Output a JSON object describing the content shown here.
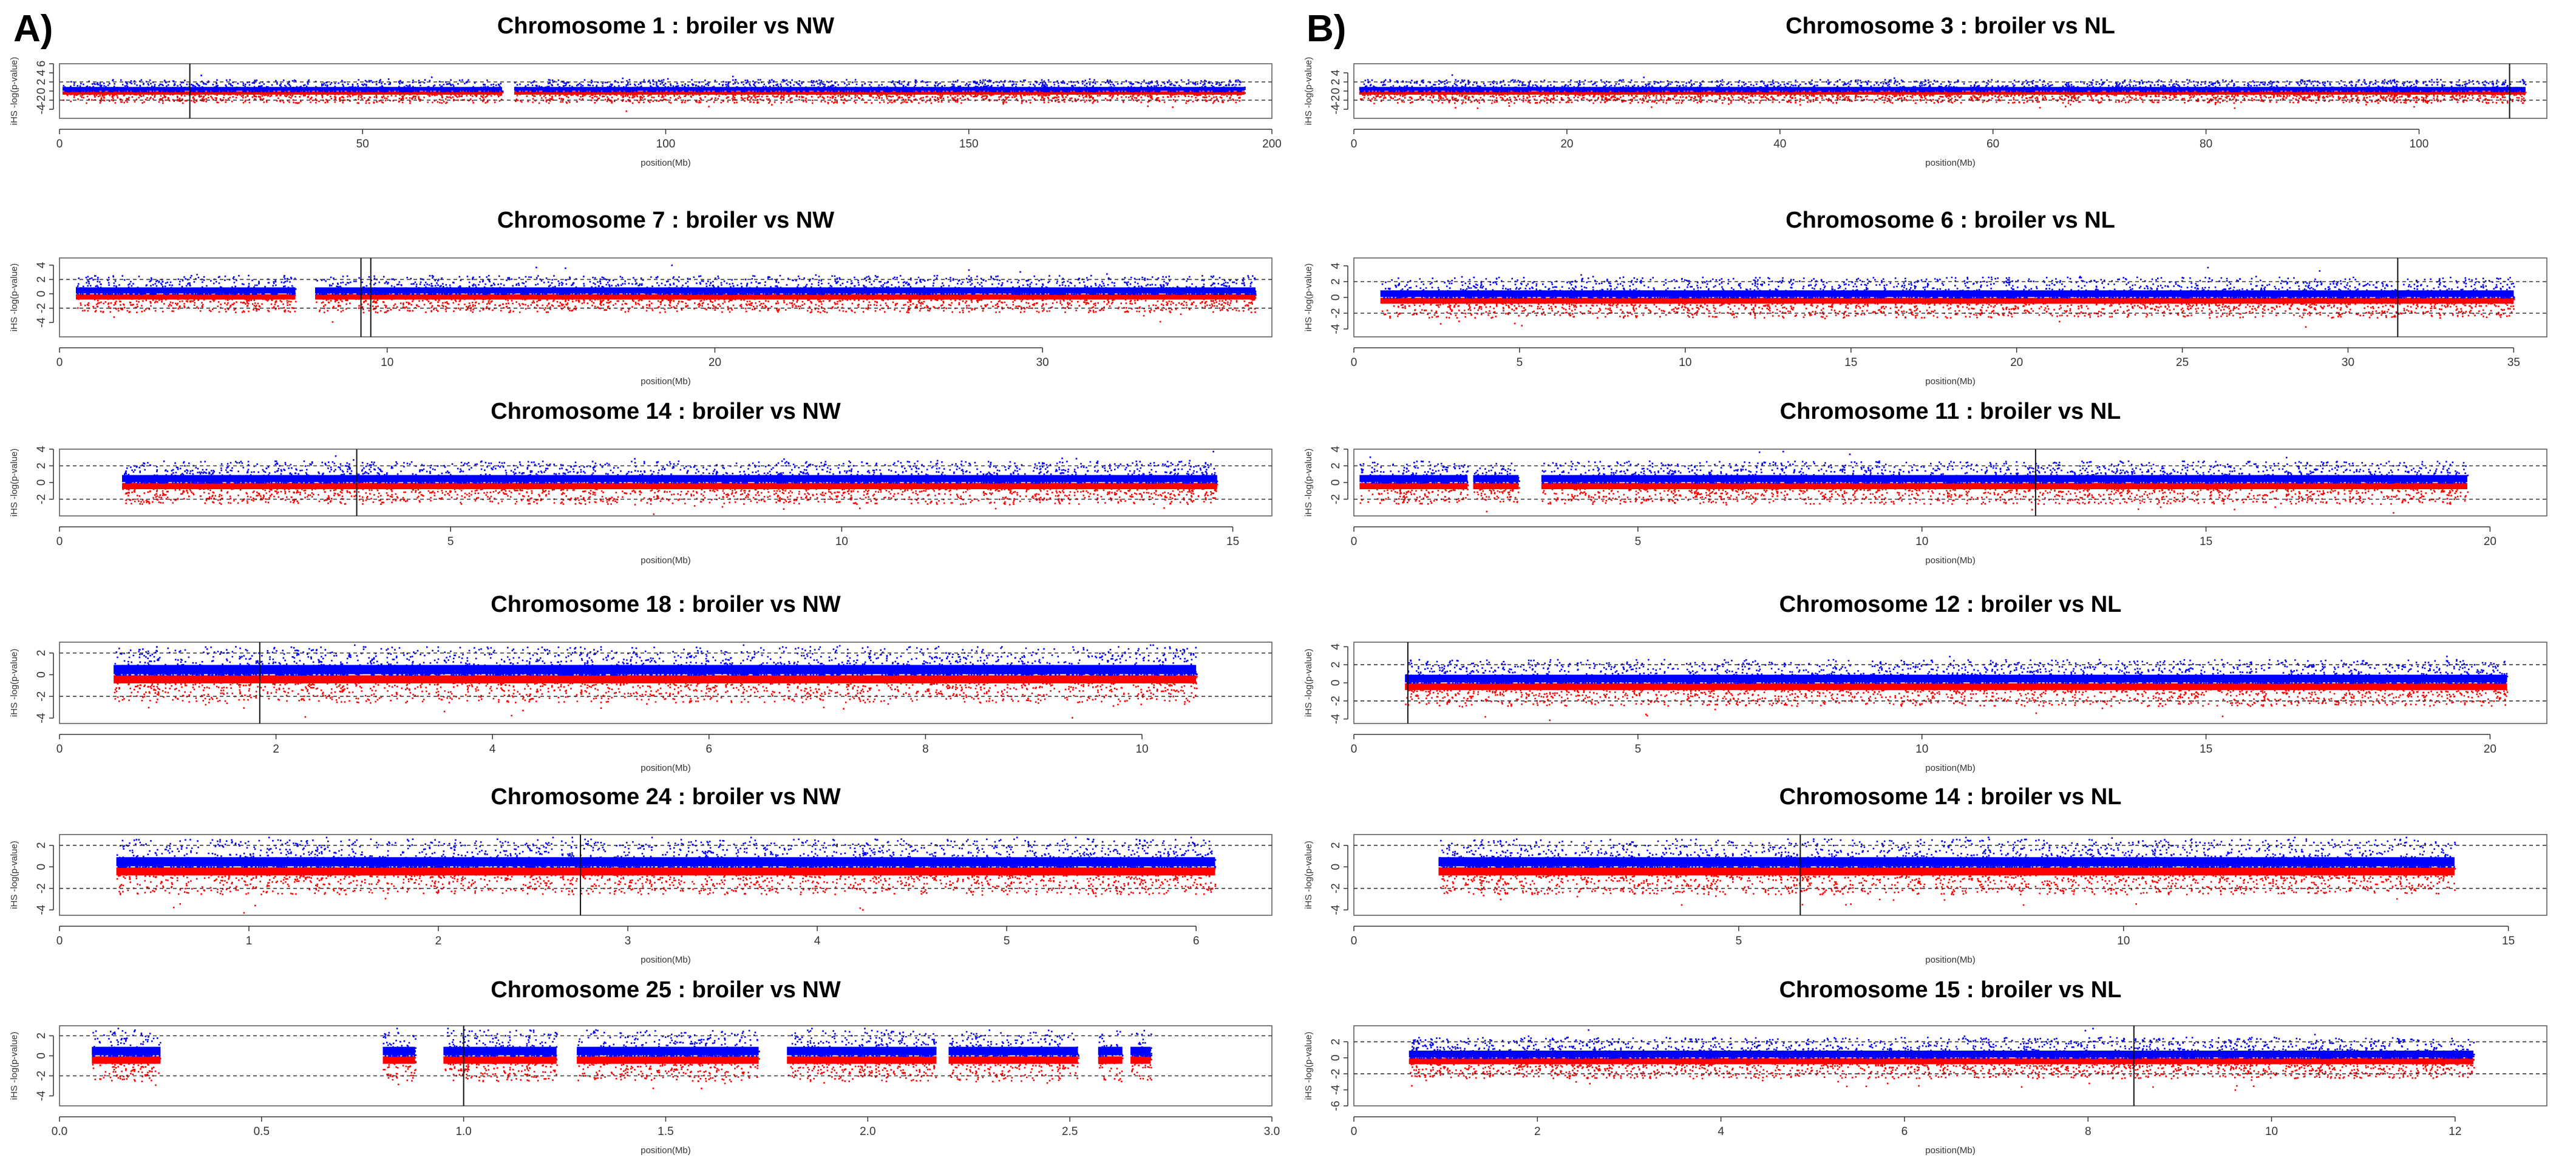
{
  "panels": [
    {
      "letter": "A)"
    },
    {
      "letter": "B)"
    }
  ],
  "chart_data": [
    {
      "type": "scatter",
      "column": 0,
      "row": 0,
      "title": "Chromosome 1 : broiler vs NW",
      "xlabel": "position(Mb)",
      "ylabel": "iHS  -log(p-value)",
      "xlim": [
        0,
        200
      ],
      "xticks": [
        0,
        50,
        100,
        150,
        200
      ],
      "xtick_labels": [
        "0",
        "50",
        "100",
        "150",
        "200"
      ],
      "ylim": [
        -6,
        6
      ],
      "yticks": [
        -4,
        -2,
        0,
        2,
        4,
        6
      ],
      "ytick_labels": [
        "-4",
        "-2",
        "0",
        "2",
        "4",
        "6"
      ],
      "threshold_lines": [
        2,
        -2
      ],
      "data_range": [
        0.5,
        195.5
      ],
      "gaps": [
        [
          73,
          75
        ]
      ],
      "marker_lines": [
        21.5
      ],
      "series": [
        {
          "name": "-log(p-value)",
          "color": "#0000ff"
        },
        {
          "name": "iHS",
          "color": "#ff0000"
        }
      ]
    },
    {
      "type": "scatter",
      "column": 0,
      "row": 1,
      "title": "Chromosome 7 : broiler vs NW",
      "xlabel": "position(Mb)",
      "ylabel": "iHS  -log(p-value)",
      "xlim": [
        0,
        37
      ],
      "xticks": [
        0,
        10,
        20,
        30
      ],
      "xtick_labels": [
        "0",
        "10",
        "20",
        "30"
      ],
      "ylim": [
        -6,
        5
      ],
      "yticks": [
        -4,
        -2,
        0,
        2,
        4
      ],
      "ytick_labels": [
        "-4",
        "-2",
        "0",
        "2",
        "4"
      ],
      "threshold_lines": [
        2,
        -2
      ],
      "data_range": [
        0.5,
        36.5
      ],
      "gaps": [
        [
          7.2,
          7.8
        ]
      ],
      "marker_lines": [
        9.2,
        9.5
      ],
      "series": [
        {
          "name": "-log(p-value)",
          "color": "#0000ff"
        },
        {
          "name": "iHS",
          "color": "#ff0000"
        }
      ]
    },
    {
      "type": "scatter",
      "column": 0,
      "row": 2,
      "title": "Chromosome 14 : broiler vs NW",
      "xlabel": "position(Mb)",
      "ylabel": "iHS  -log(p-value)",
      "xlim": [
        0,
        15.5
      ],
      "xticks": [
        0,
        5,
        10,
        15
      ],
      "xtick_labels": [
        "0",
        "5",
        "10",
        "15"
      ],
      "ylim": [
        -4,
        4
      ],
      "yticks": [
        -2,
        0,
        2,
        4
      ],
      "ytick_labels": [
        "-2",
        "0",
        "2",
        "4"
      ],
      "threshold_lines": [
        2,
        -2
      ],
      "data_range": [
        0.8,
        14.8
      ],
      "gaps": [],
      "marker_lines": [
        3.8
      ],
      "series": [
        {
          "name": "-log(p-value)",
          "color": "#0000ff"
        },
        {
          "name": "iHS",
          "color": "#ff0000"
        }
      ]
    },
    {
      "type": "scatter",
      "column": 0,
      "row": 3,
      "title": "Chromosome 18 : broiler vs NW",
      "xlabel": "position(Mb)",
      "ylabel": "iHS  -log(p-value)",
      "xlim": [
        0,
        11.2
      ],
      "xticks": [
        0,
        2,
        4,
        6,
        8,
        10
      ],
      "xtick_labels": [
        "0",
        "2",
        "4",
        "6",
        "8",
        "10"
      ],
      "ylim": [
        -4.5,
        3
      ],
      "yticks": [
        -4,
        -2,
        0,
        2
      ],
      "ytick_labels": [
        "-4",
        "-2",
        "0",
        "2"
      ],
      "threshold_lines": [
        2,
        -2
      ],
      "data_range": [
        0.5,
        10.5
      ],
      "gaps": [],
      "marker_lines": [
        1.85
      ],
      "series": [
        {
          "name": "-log(p-value)",
          "color": "#0000ff"
        },
        {
          "name": "iHS",
          "color": "#ff0000"
        }
      ]
    },
    {
      "type": "scatter",
      "column": 0,
      "row": 4,
      "title": "Chromosome 24 : broiler vs NW",
      "xlabel": "position(Mb)",
      "ylabel": "iHS  -log(p-value)",
      "xlim": [
        0,
        6.4
      ],
      "xticks": [
        0,
        1,
        2,
        3,
        4,
        5,
        6
      ],
      "xtick_labels": [
        "0",
        "1",
        "2",
        "3",
        "4",
        "5",
        "6"
      ],
      "ylim": [
        -4.5,
        3
      ],
      "yticks": [
        -4,
        -2,
        0,
        2
      ],
      "ytick_labels": [
        "-4",
        "-2",
        "0",
        "2"
      ],
      "threshold_lines": [
        2,
        -2
      ],
      "data_range": [
        0.3,
        6.1
      ],
      "gaps": [],
      "marker_lines": [
        2.75
      ],
      "series": [
        {
          "name": "-log(p-value)",
          "color": "#0000ff"
        },
        {
          "name": "iHS",
          "color": "#ff0000"
        }
      ]
    },
    {
      "type": "scatter",
      "column": 0,
      "row": 5,
      "title": "Chromosome 25 : broiler vs NW",
      "xlabel": "position(Mb)",
      "ylabel": "iHS  -log(p-value)",
      "xlim": [
        0,
        3
      ],
      "xticks": [
        0,
        0.5,
        1,
        1.5,
        2,
        2.5,
        3
      ],
      "xtick_labels": [
        "0.0",
        "0.5",
        "1.0",
        "1.5",
        "2.0",
        "2.5",
        "3.0"
      ],
      "ylim": [
        -5,
        3
      ],
      "yticks": [
        -4,
        -2,
        0,
        2
      ],
      "ytick_labels": [
        "-4",
        "-2",
        "0",
        "2"
      ],
      "threshold_lines": [
        2,
        -2
      ],
      "data_range": [
        0.08,
        2.7
      ],
      "gaps": [
        [
          0.25,
          0.8
        ],
        [
          0.88,
          0.95
        ],
        [
          1.23,
          1.28
        ],
        [
          1.73,
          1.8
        ],
        [
          2.17,
          2.2
        ],
        [
          2.52,
          2.57
        ],
        [
          2.63,
          2.65
        ]
      ],
      "marker_lines": [
        1.0
      ],
      "series": [
        {
          "name": "-log(p-value)",
          "color": "#0000ff"
        },
        {
          "name": "iHS",
          "color": "#ff0000"
        }
      ]
    },
    {
      "type": "scatter",
      "column": 1,
      "row": 0,
      "title": "Chromosome 3 : broiler vs NL",
      "xlabel": "position(Mb)",
      "ylabel": "iHS  -log(p-value)",
      "xlim": [
        0,
        112
      ],
      "xticks": [
        0,
        20,
        40,
        60,
        80,
        100
      ],
      "xtick_labels": [
        "0",
        "20",
        "40",
        "60",
        "80",
        "100"
      ],
      "ylim": [
        -6,
        6
      ],
      "yticks": [
        -4,
        -2,
        0,
        2,
        4
      ],
      "ytick_labels": [
        "-4",
        "-2",
        "0",
        "2",
        "4"
      ],
      "threshold_lines": [
        2,
        -2
      ],
      "data_range": [
        0.5,
        110
      ],
      "gaps": [],
      "marker_lines": [
        108.5
      ],
      "series": [
        {
          "name": "-log(p-value)",
          "color": "#0000ff"
        },
        {
          "name": "iHS",
          "color": "#ff0000"
        }
      ]
    },
    {
      "type": "scatter",
      "column": 1,
      "row": 1,
      "title": "Chromosome 6 : broiler vs NL",
      "xlabel": "position(Mb)",
      "ylabel": "iHS  -log(p-value)",
      "xlim": [
        0,
        36
      ],
      "xticks": [
        0,
        5,
        10,
        15,
        20,
        25,
        30,
        35
      ],
      "xtick_labels": [
        "0",
        "5",
        "10",
        "15",
        "20",
        "25",
        "30",
        "35"
      ],
      "ylim": [
        -5,
        5
      ],
      "yticks": [
        -4,
        -2,
        0,
        2,
        4
      ],
      "ytick_labels": [
        "-4",
        "-2",
        "0",
        "2",
        "4"
      ],
      "threshold_lines": [
        2,
        -2
      ],
      "data_range": [
        0.8,
        35
      ],
      "gaps": [],
      "marker_lines": [
        31.5
      ],
      "series": [
        {
          "name": "-log(p-value)",
          "color": "#0000ff"
        },
        {
          "name": "iHS",
          "color": "#ff0000"
        }
      ]
    },
    {
      "type": "scatter",
      "column": 1,
      "row": 2,
      "title": "Chromosome 11 : broiler vs NL",
      "xlabel": "position(Mb)",
      "ylabel": "iHS  -log(p-value)",
      "xlim": [
        0,
        21
      ],
      "xticks": [
        0,
        5,
        10,
        15,
        20
      ],
      "xtick_labels": [
        "0",
        "5",
        "10",
        "15",
        "20"
      ],
      "ylim": [
        -4,
        4
      ],
      "yticks": [
        -2,
        0,
        2,
        4
      ],
      "ytick_labels": [
        "-2",
        "0",
        "2",
        "4"
      ],
      "threshold_lines": [
        2,
        -2
      ],
      "data_range": [
        0.1,
        19.6
      ],
      "gaps": [
        [
          2.0,
          2.1
        ],
        [
          2.9,
          3.3
        ]
      ],
      "marker_lines": [
        12
      ],
      "series": [
        {
          "name": "-log(p-value)",
          "color": "#0000ff"
        },
        {
          "name": "iHS",
          "color": "#ff0000"
        }
      ]
    },
    {
      "type": "scatter",
      "column": 1,
      "row": 3,
      "title": "Chromosome 12 : broiler vs NL",
      "xlabel": "position(Mb)",
      "ylabel": "iHS  -log(p-value)",
      "xlim": [
        0,
        21
      ],
      "xticks": [
        0,
        5,
        10,
        15,
        20
      ],
      "xtick_labels": [
        "0",
        "5",
        "10",
        "15",
        "20"
      ],
      "ylim": [
        -4.5,
        4.5
      ],
      "yticks": [
        -4,
        -2,
        0,
        2,
        4
      ],
      "ytick_labels": [
        "-4",
        "-2",
        "0",
        "2",
        "4"
      ],
      "threshold_lines": [
        2,
        -2
      ],
      "data_range": [
        0.9,
        20.3
      ],
      "gaps": [],
      "marker_lines": [
        0.95
      ],
      "series": [
        {
          "name": "-log(p-value)",
          "color": "#0000ff"
        },
        {
          "name": "iHS",
          "color": "#ff0000"
        }
      ]
    },
    {
      "type": "scatter",
      "column": 1,
      "row": 4,
      "title": "Chromosome 14 : broiler vs NL",
      "xlabel": "position(Mb)",
      "ylabel": "iHS  -log(p-value)",
      "xlim": [
        0,
        15.5
      ],
      "xticks": [
        0,
        5,
        10,
        15
      ],
      "xtick_labels": [
        "0",
        "5",
        "10",
        "15"
      ],
      "ylim": [
        -4.5,
        3
      ],
      "yticks": [
        -4,
        -2,
        0,
        2
      ],
      "ytick_labels": [
        "-4",
        "-2",
        "0",
        "2"
      ],
      "threshold_lines": [
        2,
        -2
      ],
      "data_range": [
        1.1,
        14.3
      ],
      "gaps": [],
      "marker_lines": [
        5.8
      ],
      "series": [
        {
          "name": "-log(p-value)",
          "color": "#0000ff"
        },
        {
          "name": "iHS",
          "color": "#ff0000"
        }
      ]
    },
    {
      "type": "scatter",
      "column": 1,
      "row": 5,
      "title": "Chromosome 15 : broiler vs NL",
      "xlabel": "position(Mb)",
      "ylabel": "iHS  -log(p-value)",
      "xlim": [
        0,
        13
      ],
      "xticks": [
        0,
        2,
        4,
        6,
        8,
        10,
        12
      ],
      "xtick_labels": [
        "0",
        "2",
        "4",
        "6",
        "8",
        "10",
        "12"
      ],
      "ylim": [
        -6,
        4
      ],
      "yticks": [
        -6,
        -4,
        -2,
        0,
        2
      ],
      "ytick_labels": [
        "-6",
        "-4",
        "-2",
        "0",
        "2"
      ],
      "threshold_lines": [
        2,
        -2
      ],
      "data_range": [
        0.6,
        12.2
      ],
      "gaps": [],
      "marker_lines": [
        8.5
      ],
      "series": [
        {
          "name": "-log(p-value)",
          "color": "#0000ff"
        },
        {
          "name": "iHS",
          "color": "#ff0000"
        }
      ]
    }
  ]
}
